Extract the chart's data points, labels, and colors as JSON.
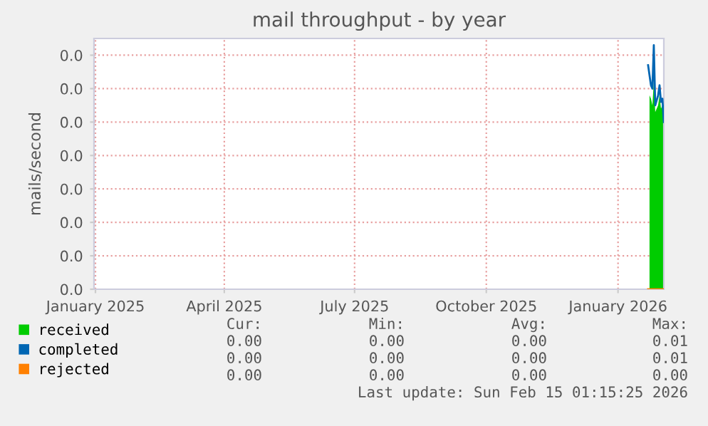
{
  "chart_data": {
    "type": "area",
    "title": "mail throughput - by year",
    "ylabel": "mails/second",
    "xlim": [
      "2024-12-31",
      "2026-02-02"
    ],
    "xticks": [
      {
        "value": "2025-01-01",
        "label": "January 2025"
      },
      {
        "value": "2025-04-01",
        "label": "April 2025"
      },
      {
        "value": "2025-07-01",
        "label": "July 2025"
      },
      {
        "value": "2025-10-01",
        "label": "October 2025"
      },
      {
        "value": "2026-01-01",
        "label": "January 2026"
      }
    ],
    "ylim": [
      0,
      0.0075
    ],
    "yticks": [
      {
        "value": 0,
        "label": "0.0"
      },
      {
        "value": 0.001,
        "label": "0.0"
      },
      {
        "value": 0.002,
        "label": "0.0"
      },
      {
        "value": 0.003,
        "label": "0.0"
      },
      {
        "value": 0.004,
        "label": "0.0"
      },
      {
        "value": 0.005,
        "label": "0.0"
      },
      {
        "value": 0.006,
        "label": "0.0"
      },
      {
        "value": 0.007,
        "label": "0.0"
      }
    ],
    "grid": true,
    "legend": "bottom left",
    "series": [
      {
        "name": "received",
        "color": "#00cc00",
        "x": [
          "2026-01-23",
          "2026-01-24",
          "2026-01-25",
          "2026-01-26",
          "2026-01-27",
          "2026-01-29",
          "2026-01-30",
          "2026-01-31",
          "2026-02-01",
          "2026-02-02"
        ],
        "values": [
          0.0058,
          0.0057,
          0.0055,
          0.0062,
          0.0053,
          0.0055,
          0.0058,
          0.0054,
          0.0055,
          0.0054
        ]
      },
      {
        "name": "completed",
        "type": "line",
        "color": "#0066b3",
        "x": [
          "2026-01-22",
          "2026-01-24",
          "2026-01-25",
          "2026-01-26",
          "2026-01-27",
          "2026-01-29",
          "2026-01-30",
          "2026-01-31",
          "2026-02-01",
          "2026-02-02"
        ],
        "values": [
          0.0067,
          0.0061,
          0.006,
          0.0073,
          0.0055,
          0.0058,
          0.0061,
          0.0056,
          0.0057,
          0.005
        ]
      },
      {
        "name": "rejected",
        "type": "line",
        "color": "#ff8000",
        "x": [
          "2026-01-22",
          "2026-02-02"
        ],
        "values": [
          0,
          0
        ]
      }
    ],
    "annotations": [
      "Cur:",
      "Min:",
      "Avg:",
      "Max:",
      "0.00",
      "0.00",
      "0.00",
      "0.01",
      "0.00",
      "0.00",
      "0.00",
      "0.01",
      "0.00",
      "0.00",
      "0.00",
      "0.00",
      "Last update: Sun Feb 15 01:15:25 2026"
    ]
  }
}
